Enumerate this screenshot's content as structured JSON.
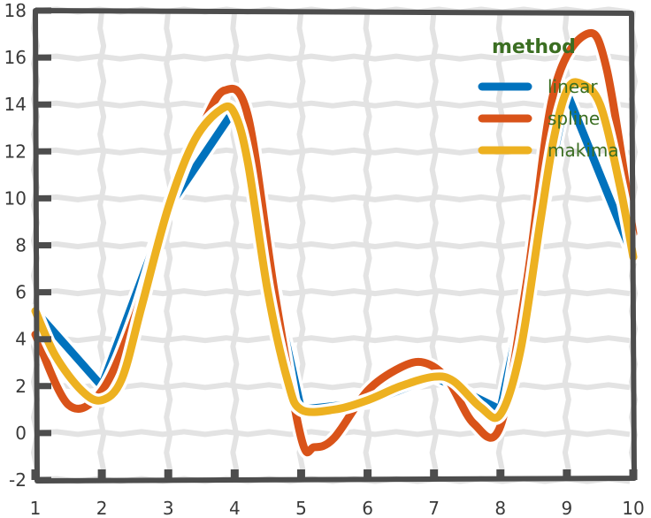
{
  "chart_data": {
    "type": "line",
    "title": "",
    "xlabel": "",
    "ylabel": "",
    "xlim": [
      1,
      10
    ],
    "ylim": [
      -2,
      18
    ],
    "xticks": [
      1,
      2,
      3,
      4,
      5,
      6,
      7,
      8,
      9,
      10
    ],
    "yticks": [
      -2,
      0,
      2,
      4,
      6,
      8,
      10,
      12,
      14,
      16,
      18
    ],
    "grid": true,
    "legend": {
      "title": "method",
      "placement": "top-right",
      "entries": [
        "linear",
        "spline",
        "makima"
      ]
    },
    "series": [
      {
        "name": "linear",
        "color": "#0072bd",
        "x": [
          1,
          2,
          3,
          4,
          5,
          6,
          7,
          8,
          9,
          10
        ],
        "y": [
          5.2,
          2.0,
          9.6,
          13.8,
          1.0,
          1.3,
          2.4,
          1.0,
          14.5,
          7.5
        ]
      },
      {
        "name": "spline",
        "color": "#d95319",
        "x": [
          1,
          1.5,
          2,
          2.5,
          3,
          3.5,
          3.85,
          4.2,
          4.6,
          5,
          5.2,
          5.5,
          6,
          6.5,
          6.85,
          7.2,
          7.6,
          8,
          8.4,
          8.8,
          9.3,
          9.6,
          10
        ],
        "y": [
          4.2,
          1.2,
          1.8,
          5.0,
          9.6,
          13.0,
          14.6,
          13.5,
          6.0,
          -0.2,
          -0.6,
          -0.2,
          1.8,
          2.8,
          3.0,
          2.3,
          0.4,
          0.3,
          6.5,
          14.5,
          17.0,
          15.5,
          8.5
        ]
      },
      {
        "name": "makima",
        "color": "#edb120",
        "x": [
          1,
          1.3,
          1.7,
          2,
          2.3,
          2.6,
          3,
          3.4,
          3.8,
          4,
          4.2,
          4.5,
          4.8,
          5,
          5.5,
          6,
          6.5,
          7,
          7.3,
          7.7,
          8,
          8.3,
          8.6,
          8.8,
          9,
          9.2,
          9.5,
          9.8,
          10
        ],
        "y": [
          5.2,
          3.3,
          1.8,
          1.4,
          2.3,
          5.4,
          9.6,
          12.5,
          13.8,
          13.6,
          11.5,
          6.0,
          2.2,
          1.0,
          1.0,
          1.4,
          2.0,
          2.4,
          2.2,
          1.1,
          0.8,
          3.5,
          9.0,
          12.5,
          14.6,
          14.9,
          14.0,
          10.5,
          7.5
        ]
      }
    ]
  }
}
